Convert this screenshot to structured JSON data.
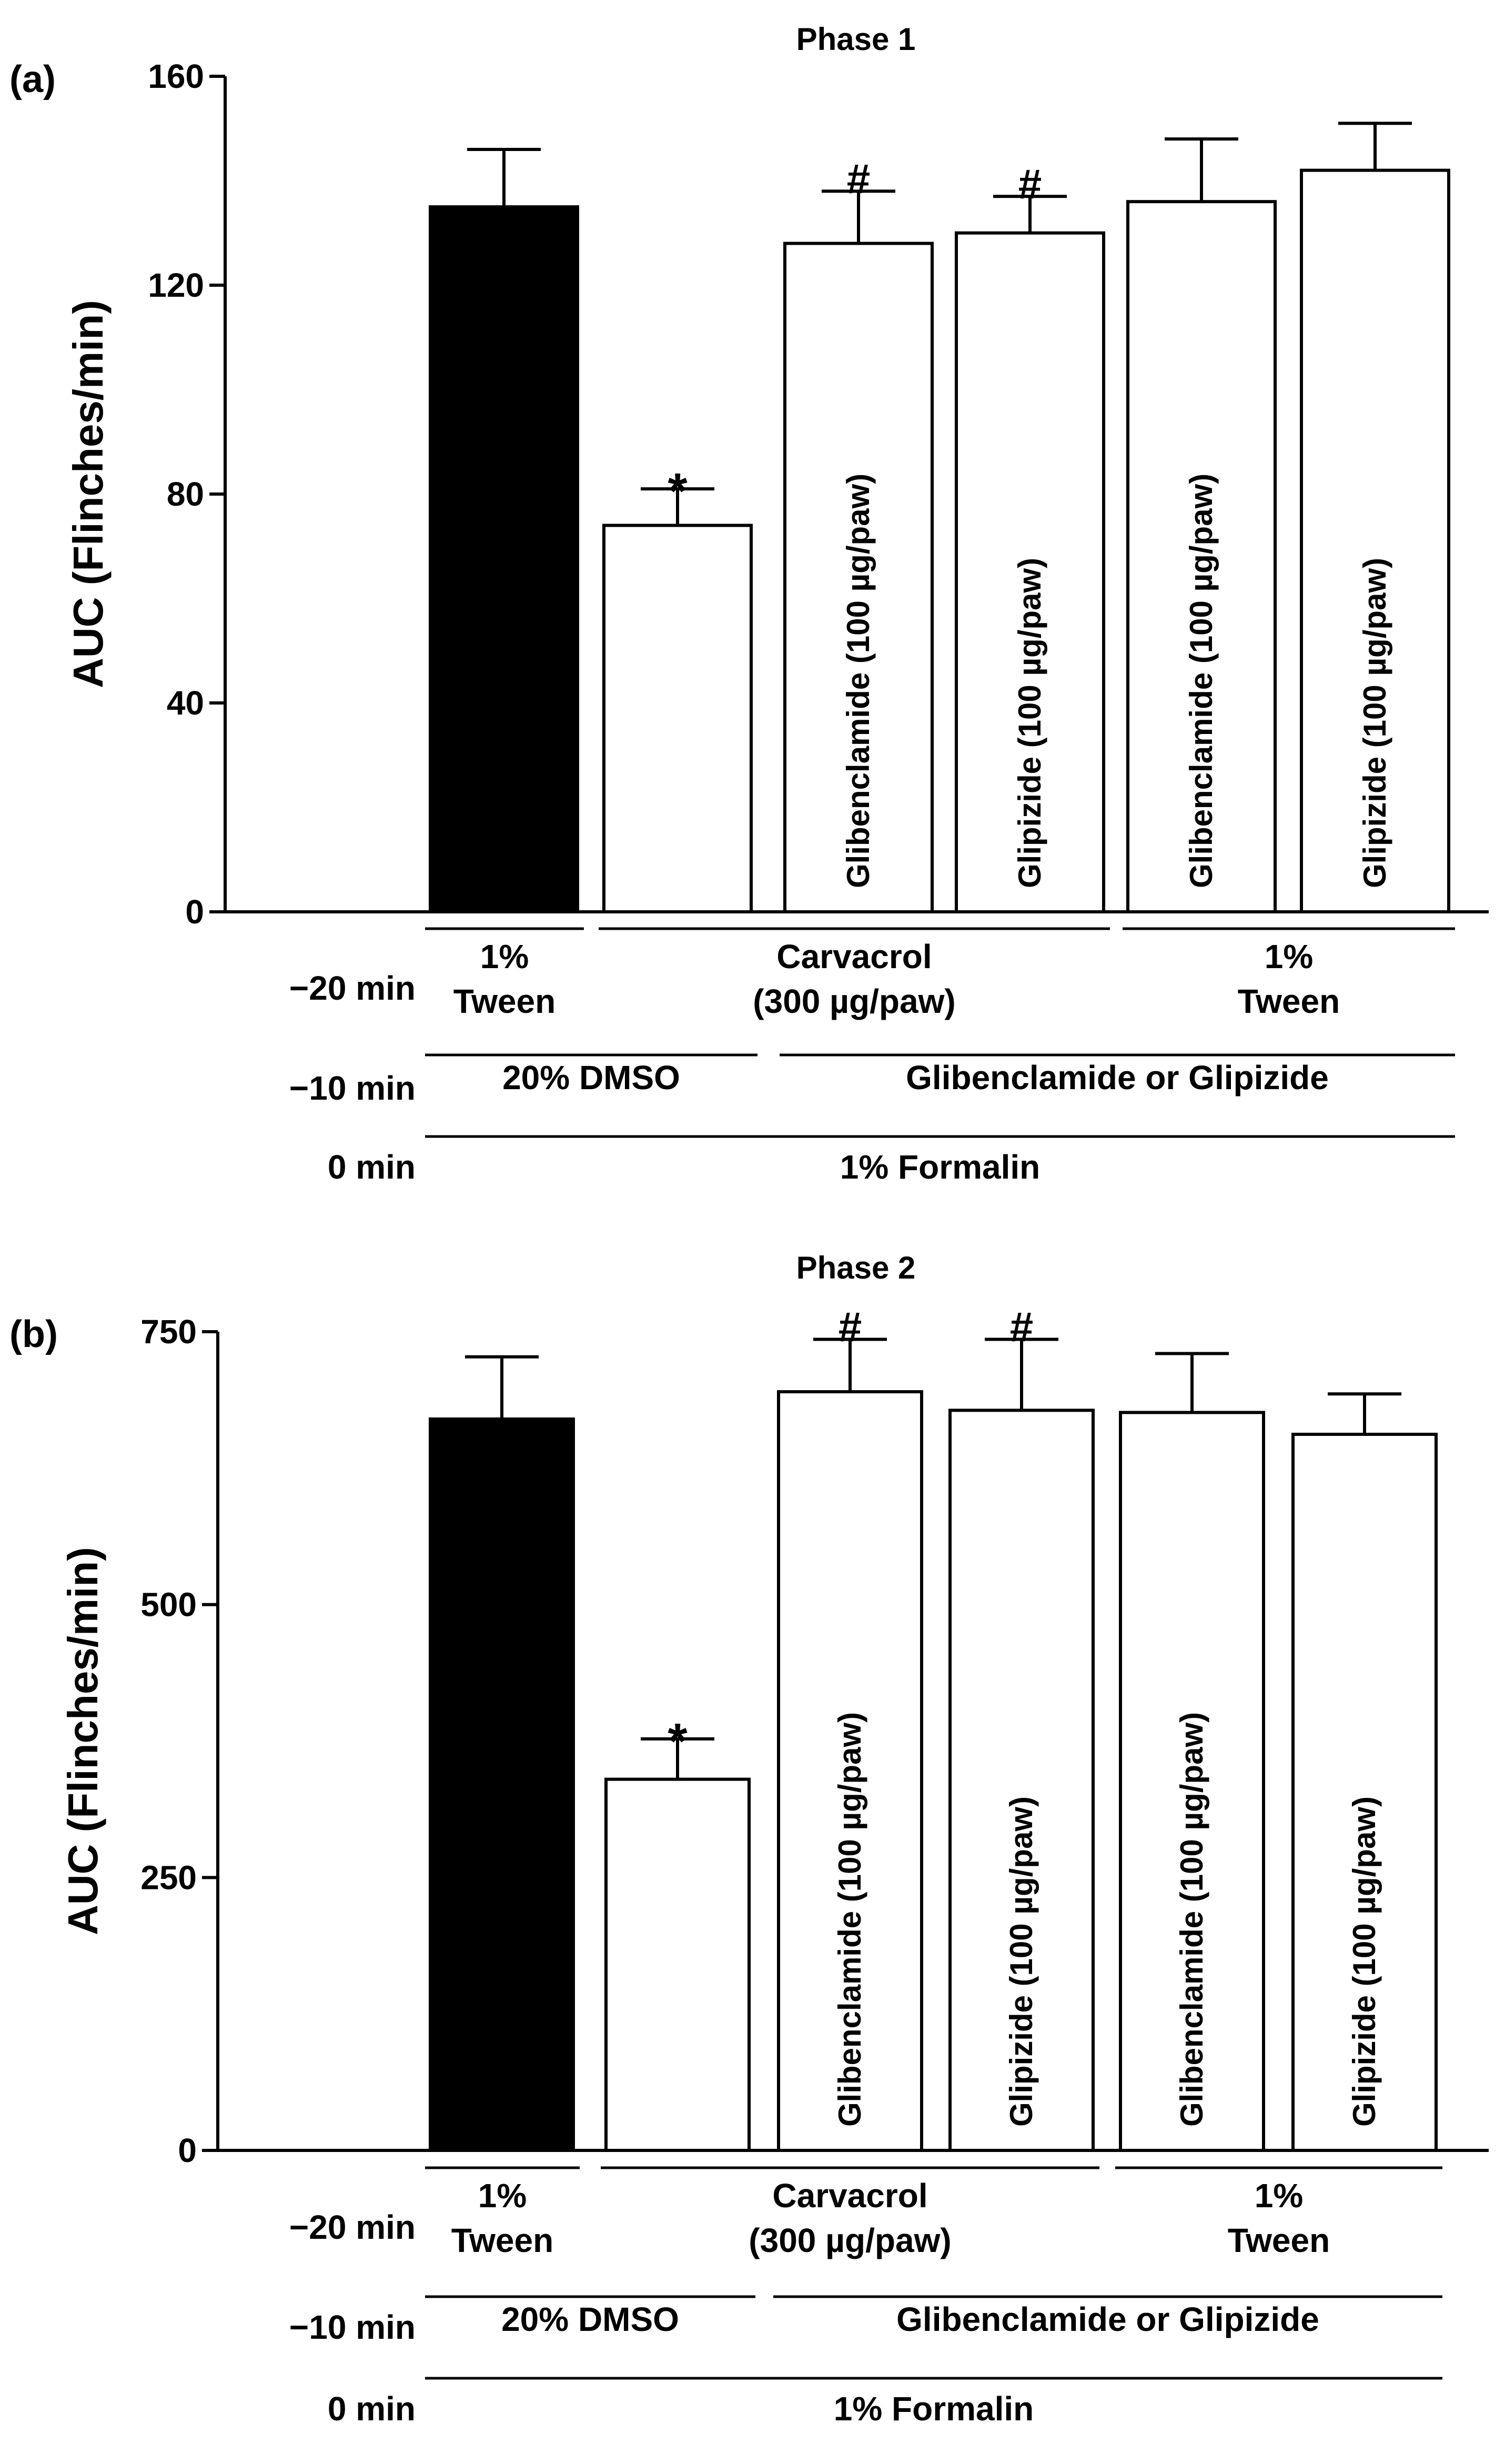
{
  "chart_data": [
    {
      "type": "bar",
      "panel_label": "(a)",
      "title": "Phase 1",
      "ylabel": "AUC (Flinches/min)",
      "ylim": [
        0,
        160
      ],
      "yticks": [
        "0",
        "40",
        "80",
        "120",
        "160"
      ],
      "ytick_values": [
        0,
        40,
        80,
        120,
        160
      ],
      "bars": [
        {
          "value": 135,
          "error": 11,
          "fill": "black",
          "mark": "",
          "inner_label": ""
        },
        {
          "value": 74,
          "error": 7,
          "fill": "white",
          "mark": "*",
          "inner_label": ""
        },
        {
          "value": 128,
          "error": 10,
          "fill": "white",
          "mark": "#",
          "inner_label": "Glibenclamide (100 µg/paw)"
        },
        {
          "value": 130,
          "error": 7,
          "fill": "white",
          "mark": "#",
          "inner_label": "Glipizide (100 µg/paw)"
        },
        {
          "value": 136,
          "error": 12,
          "fill": "white",
          "mark": "",
          "inner_label": "Glibenclamide (100 µg/paw)"
        },
        {
          "value": 142,
          "error": 9,
          "fill": "white",
          "mark": "",
          "inner_label": "Glipizide (100 µg/paw)"
        }
      ],
      "treatment_rows": [
        {
          "time": "−20 min",
          "groups": [
            {
              "line1": "1%",
              "line2": "Tween",
              "from": 0,
              "to": 0
            },
            {
              "line1": "Carvacrol",
              "line2": "(300 µg/paw)",
              "from": 1,
              "to": 3
            },
            {
              "line1": "1%",
              "line2": "Tween",
              "from": 4,
              "to": 5
            }
          ]
        },
        {
          "time": "−10 min",
          "groups": [
            {
              "line1": "20% DMSO",
              "line2": "",
              "from": 0,
              "to": 1
            },
            {
              "line1": "Glibenclamide or Glipizide",
              "line2": "",
              "from": 2,
              "to": 5
            }
          ]
        },
        {
          "time": "0 min",
          "groups": [
            {
              "line1": "1% Formalin",
              "line2": "",
              "from": 0,
              "to": 5
            }
          ]
        }
      ]
    },
    {
      "type": "bar",
      "panel_label": "(b)",
      "title": "Phase 2",
      "ylabel": "AUC (Flinches/min)",
      "ylim": [
        0,
        750
      ],
      "yticks": [
        "0",
        "250",
        "500",
        "750"
      ],
      "ytick_values": [
        0,
        250,
        500,
        750
      ],
      "bars": [
        {
          "value": 670,
          "error": 57,
          "fill": "black",
          "mark": "",
          "inner_label": ""
        },
        {
          "value": 340,
          "error": 37,
          "fill": "white",
          "mark": "*",
          "inner_label": ""
        },
        {
          "value": 695,
          "error": 48,
          "fill": "white",
          "mark": "#",
          "inner_label": "Glibenclamide (100 µg/paw)"
        },
        {
          "value": 678,
          "error": 65,
          "fill": "white",
          "mark": "#",
          "inner_label": "Glipizide (100 µg/paw)"
        },
        {
          "value": 676,
          "error": 54,
          "fill": "white",
          "mark": "",
          "inner_label": "Glibenclamide (100 µg/paw)"
        },
        {
          "value": 656,
          "error": 37,
          "fill": "white",
          "mark": "",
          "inner_label": "Glipizide (100 µg/paw)"
        }
      ],
      "treatment_rows": [
        {
          "time": "−20 min",
          "groups": [
            {
              "line1": "1%",
              "line2": "Tween",
              "from": 0,
              "to": 0
            },
            {
              "line1": "Carvacrol",
              "line2": "(300 µg/paw)",
              "from": 1,
              "to": 3
            },
            {
              "line1": "1%",
              "line2": "Tween",
              "from": 4,
              "to": 5
            }
          ]
        },
        {
          "time": "−10 min",
          "groups": [
            {
              "line1": "20% DMSO",
              "line2": "",
              "from": 0,
              "to": 1
            },
            {
              "line1": "Glibenclamide or Glipizide",
              "line2": "",
              "from": 2,
              "to": 5
            }
          ]
        },
        {
          "time": "0 min",
          "groups": [
            {
              "line1": "1% Formalin",
              "line2": "",
              "from": 0,
              "to": 5
            }
          ]
        }
      ]
    }
  ]
}
